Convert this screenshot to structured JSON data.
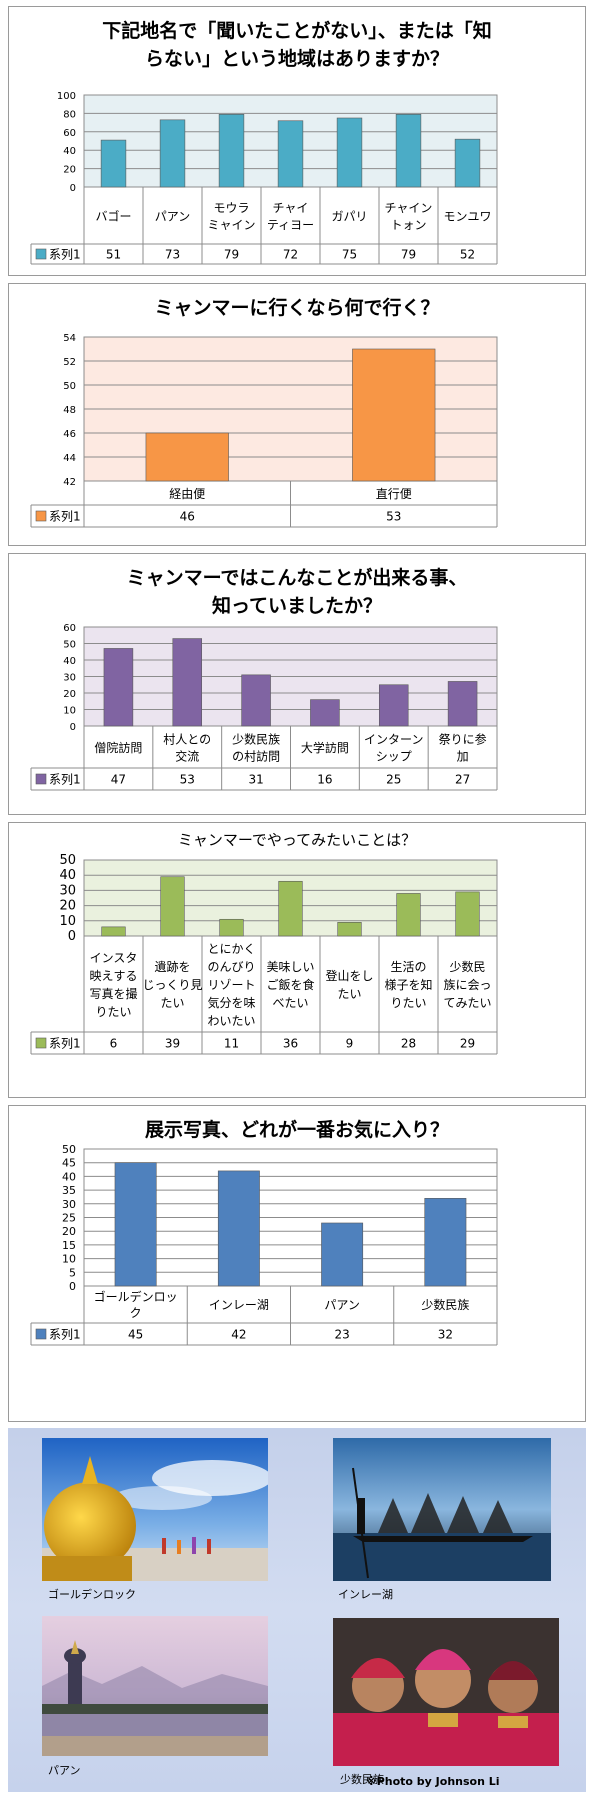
{
  "charts": [
    {
      "title_lines": [
        "下記地名で「聞いたことがない」、または「知",
        "らない」という地域はありますか？"
      ],
      "chart_data": {
        "type": "bar",
        "title": "下記地名で「聞いたことがない」、または「知らない」という地域はありますか？",
        "categories": [
          [
            "バゴー"
          ],
          [
            "パアン"
          ],
          [
            "モウラ",
            "ミャイン"
          ],
          [
            "チャイ",
            "ティヨー"
          ],
          [
            "ガパリ"
          ],
          [
            "チャイン",
            "トォン"
          ],
          [
            "モンユワ"
          ]
        ],
        "series": [
          {
            "name": "系列1",
            "values": [
              51,
              73,
              79,
              72,
              75,
              79,
              52
            ]
          }
        ],
        "ylim": [
          0,
          100
        ],
        "yticks": [
          0,
          20,
          40,
          60,
          80,
          100
        ],
        "xlabel": "",
        "ylabel": ""
      }
    },
    {
      "title_lines": [
        "ミャンマーに行くなら何で行く？"
      ],
      "chart_data": {
        "type": "bar",
        "title": "ミャンマーに行くなら何で行く？",
        "categories": [
          [
            "経由便"
          ],
          [
            "直行便"
          ]
        ],
        "series": [
          {
            "name": "系列1",
            "values": [
              46,
              53
            ]
          }
        ],
        "ylim": [
          42,
          54
        ],
        "yticks": [
          42,
          44,
          46,
          48,
          50,
          52,
          54
        ],
        "xlabel": "",
        "ylabel": ""
      }
    },
    {
      "title_lines": [
        "ミャンマーではこんなことが出来る事、",
        "知っていましたか？"
      ],
      "chart_data": {
        "type": "bar",
        "title": "ミャンマーではこんなことが出来る事、知っていましたか？",
        "categories": [
          [
            "僧院訪問"
          ],
          [
            "村人との",
            "交流"
          ],
          [
            "少数民族",
            "の村訪問"
          ],
          [
            "大学訪問"
          ],
          [
            "インターン",
            "シップ"
          ],
          [
            "祭りに参",
            "加"
          ]
        ],
        "series": [
          {
            "name": "系列1",
            "values": [
              47,
              53,
              31,
              16,
              25,
              27
            ]
          }
        ],
        "ylim": [
          0,
          60
        ],
        "yticks": [
          0,
          10,
          20,
          30,
          40,
          50,
          60
        ],
        "xlabel": "",
        "ylabel": ""
      }
    },
    {
      "title_lines": [
        "ミャンマーでやってみたいことは？"
      ],
      "chart_data": {
        "type": "bar",
        "title": "ミャンマーでやってみたいことは？",
        "categories": [
          [
            "インスタ",
            "映えする",
            "写真を撮",
            "りたい"
          ],
          [
            "遺跡を",
            "じっくり見",
            "たい"
          ],
          [
            "とにかく",
            "のんびり",
            "リゾート",
            "気分を味",
            "わいたい"
          ],
          [
            "美味しい",
            "ご飯を食",
            "べたい"
          ],
          [
            "登山をし",
            "たい"
          ],
          [
            "生活の",
            "様子を知",
            "りたい"
          ],
          [
            "少数民",
            "族に会っ",
            "てみたい"
          ]
        ],
        "series": [
          {
            "name": "系列1",
            "values": [
              6,
              39,
              11,
              36,
              9,
              28,
              29
            ]
          }
        ],
        "ylim": [
          0,
          50
        ],
        "yticks": [
          0,
          10,
          20,
          30,
          40,
          50
        ],
        "xlabel": "",
        "ylabel": ""
      }
    },
    {
      "title_lines": [
        "展示写真、どれが一番お気に入り？"
      ],
      "chart_data": {
        "type": "bar",
        "title": "展示写真、どれが一番お気に入り？",
        "categories": [
          [
            "ゴールデンロッ",
            "ク"
          ],
          [
            "インレー湖"
          ],
          [
            "パアン"
          ],
          [
            "少数民族"
          ]
        ],
        "series": [
          {
            "name": "系列1",
            "values": [
              45,
              42,
              23,
              32
            ]
          }
        ],
        "ylim": [
          0,
          50
        ],
        "yticks": [
          0,
          5,
          10,
          15,
          20,
          25,
          30,
          35,
          40,
          45,
          50
        ],
        "xlabel": "",
        "ylabel": ""
      }
    }
  ],
  "colors": {
    "bars": [
      "#4bacc6",
      "#f79646",
      "#8064a2",
      "#9bbb59",
      "#4f81bd"
    ],
    "plot_bg": [
      "#e6f0f3",
      "#fde9e1",
      "#ebe4ef",
      "#eaf1de",
      "#ffffff"
    ]
  },
  "photos": {
    "captions": [
      "ゴールデンロック",
      "インレー湖",
      "パアン",
      "少数民族"
    ],
    "credit": "※Photo by Johnson Li"
  }
}
